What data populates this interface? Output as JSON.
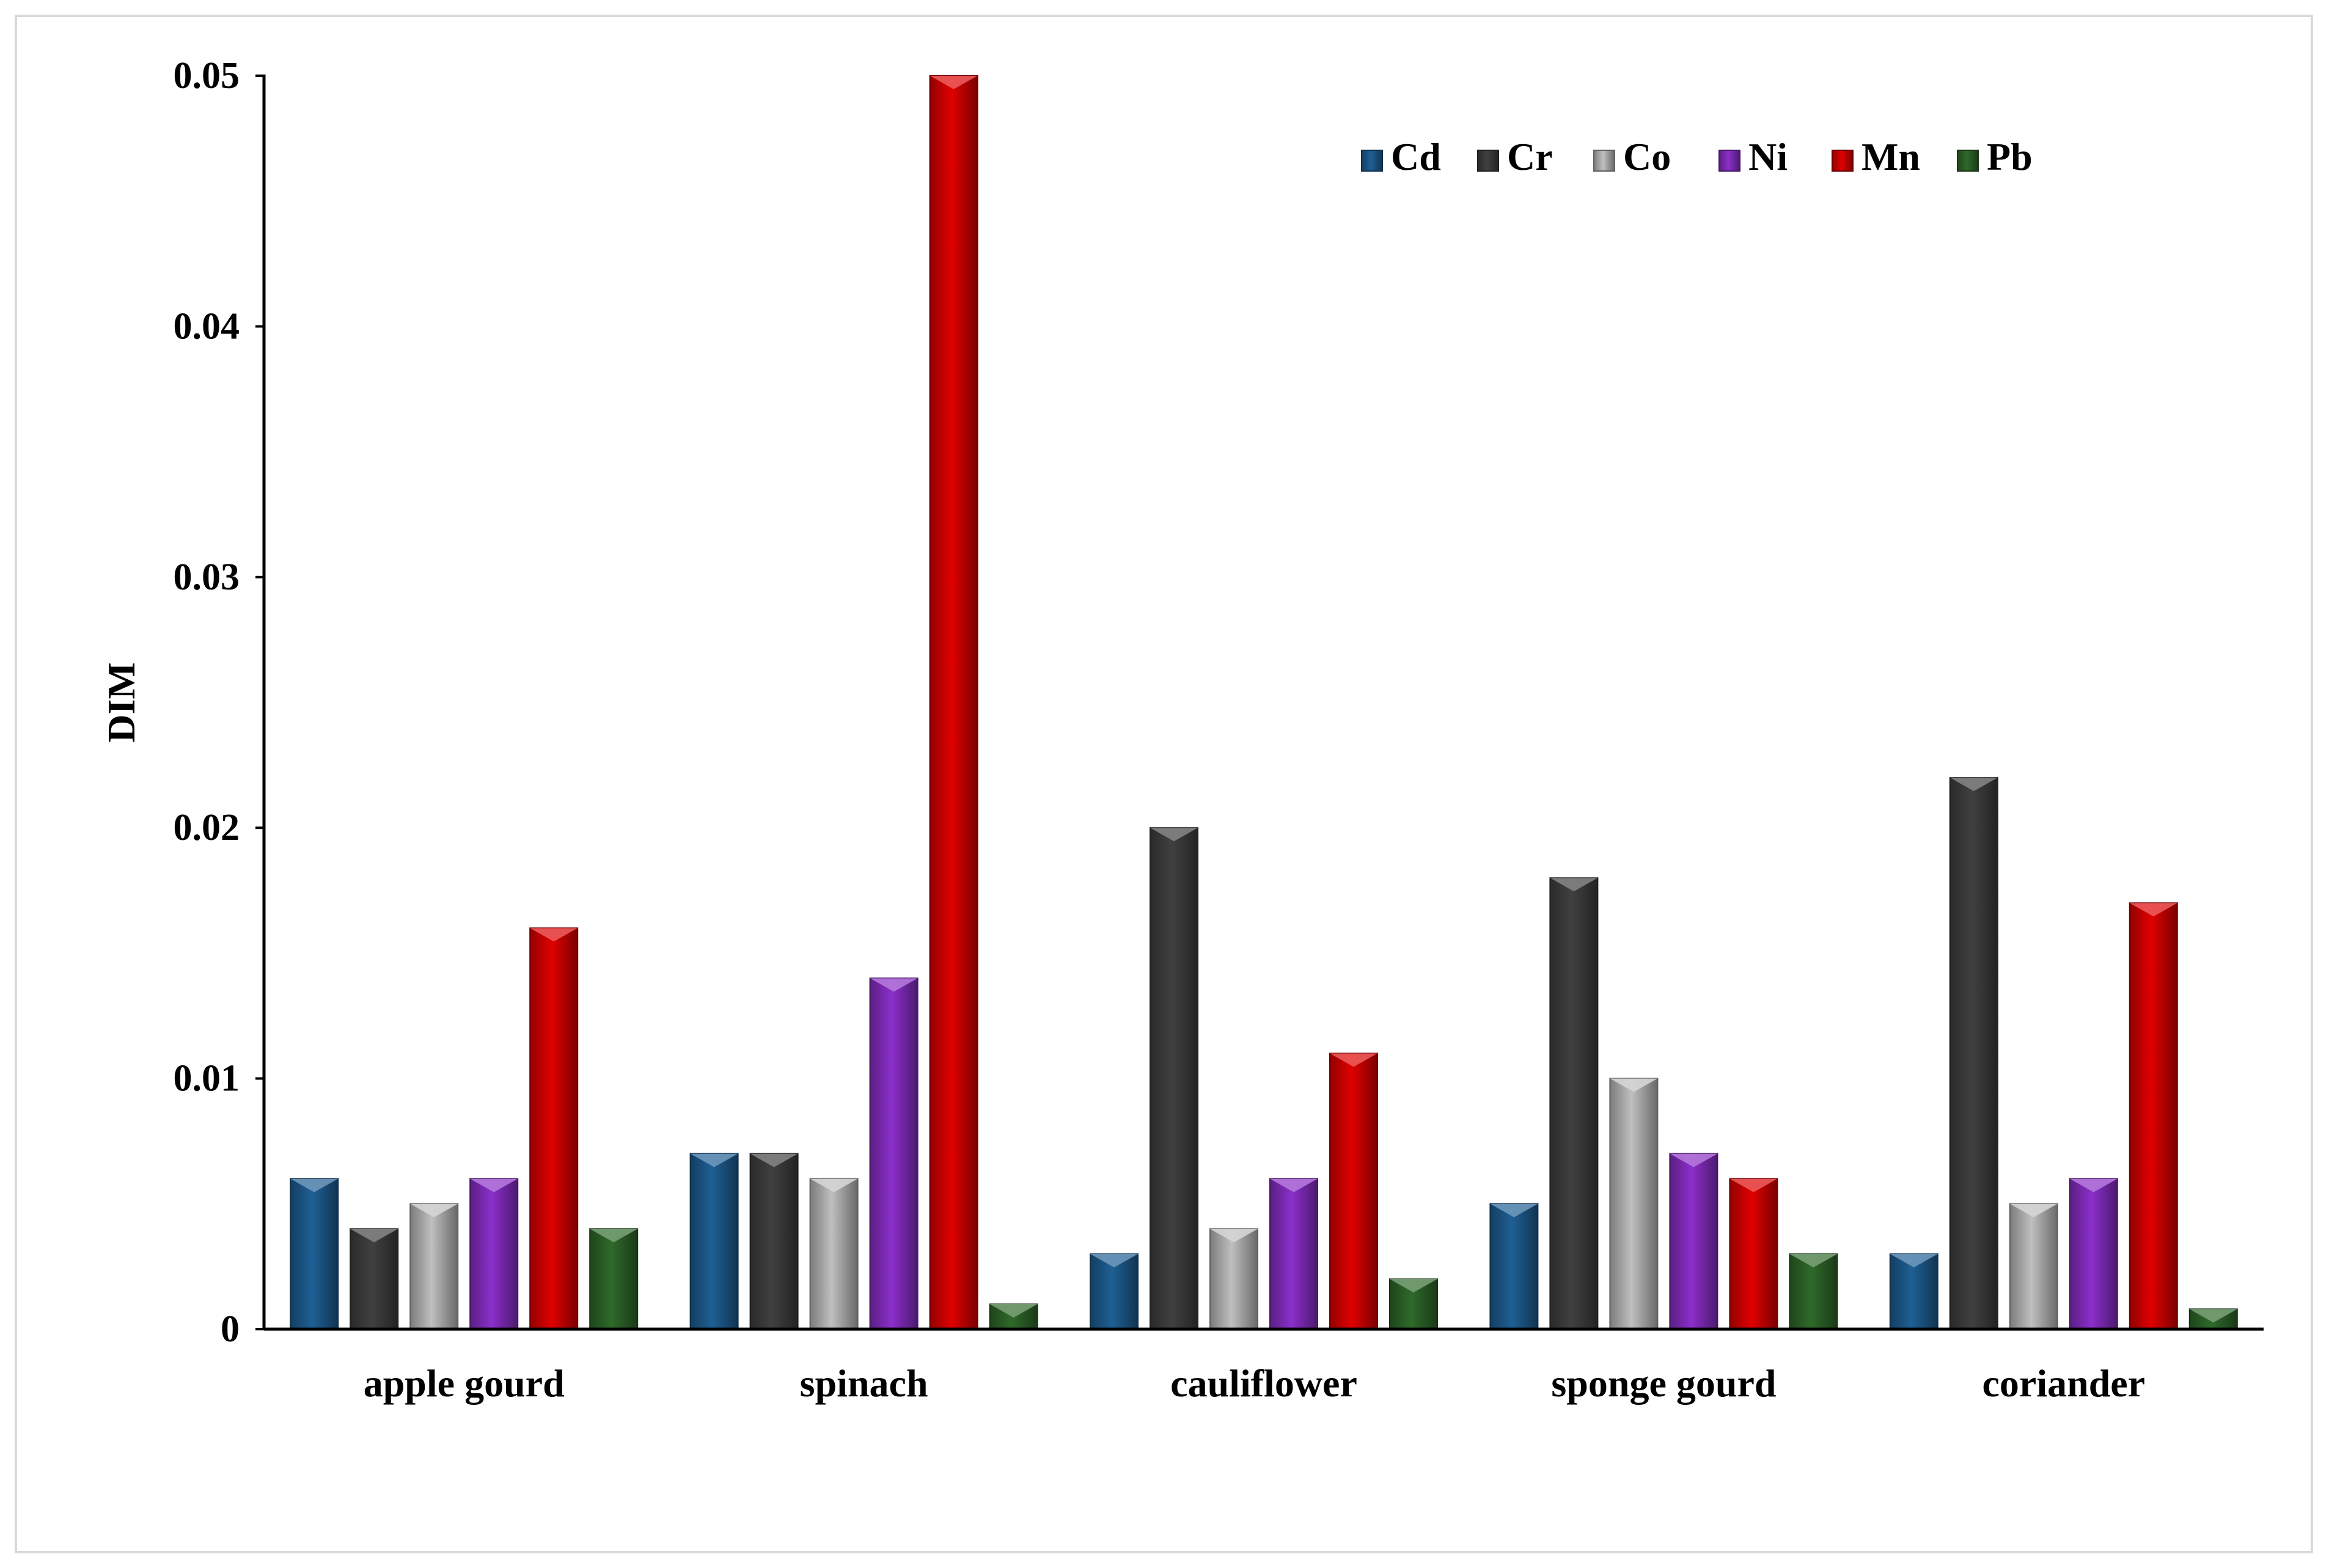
{
  "chart_data": {
    "type": "bar",
    "title": "",
    "xlabel": "",
    "ylabel": "DIM",
    "ylim": [
      0,
      0.05
    ],
    "yticks": [
      "0",
      "0.01",
      "0.02",
      "0.03",
      "0.04",
      "0.05"
    ],
    "grid": false,
    "legend_position": "top-right",
    "categories": [
      "apple gourd",
      "spinach",
      "cauliflower",
      "sponge gourd",
      "coriander"
    ],
    "series": [
      {
        "name": "Cd",
        "color": "#1f5f95",
        "values": [
          0.006,
          0.007,
          0.003,
          0.005,
          0.003
        ]
      },
      {
        "name": "Cr",
        "color": "#404040",
        "values": [
          0.004,
          0.007,
          0.02,
          0.018,
          0.022
        ]
      },
      {
        "name": "Co",
        "color": "#bfbfbf",
        "values": [
          0.005,
          0.006,
          0.004,
          0.01,
          0.005
        ]
      },
      {
        "name": "Ni",
        "color": "#8b2fc9",
        "values": [
          0.006,
          0.014,
          0.006,
          0.007,
          0.006
        ]
      },
      {
        "name": "Mn",
        "color": "#e00000",
        "values": [
          0.016,
          0.05,
          0.011,
          0.006,
          0.017
        ]
      },
      {
        "name": "Pb",
        "color": "#2f6a2a",
        "values": [
          0.004,
          0.001,
          0.002,
          0.003,
          0.0008
        ]
      }
    ]
  }
}
